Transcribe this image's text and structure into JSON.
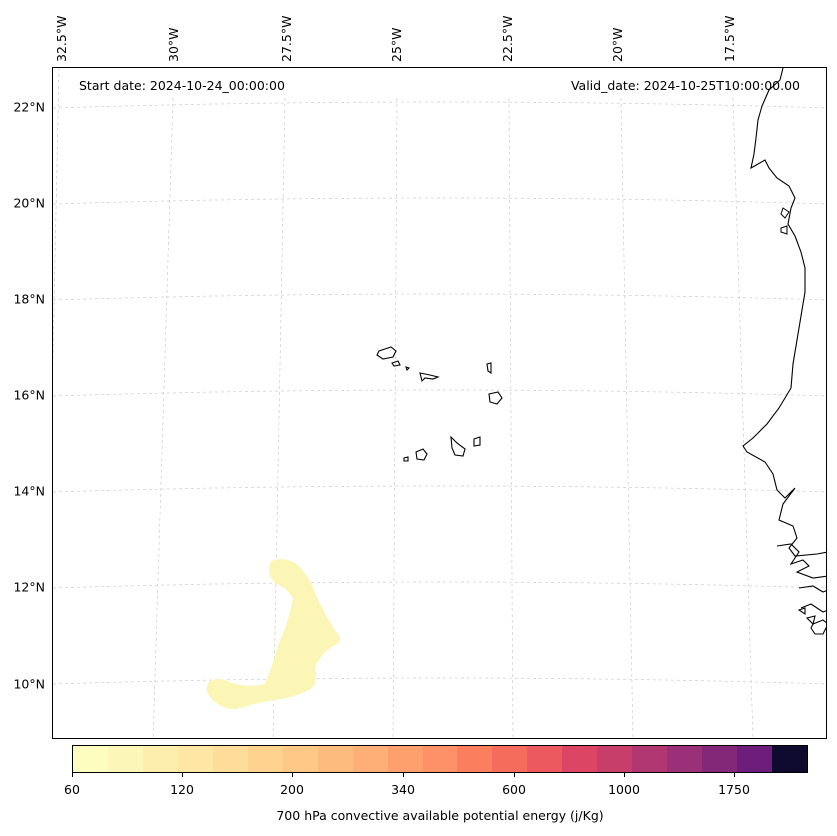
{
  "header": {
    "start_date": "Start date: 2024-10-24_00:00:00",
    "valid_date": "Valid_date: 2024-10-25T10:00:00.00"
  },
  "map": {
    "latitude_labels": [
      "22°N",
      "20°N",
      "18°N",
      "16°N",
      "14°N",
      "12°N",
      "10°N"
    ],
    "longitude_labels": [
      "32.5°W",
      "30°W",
      "27.5°W",
      "25°W",
      "22.5°W",
      "20°W",
      "17.5°W"
    ],
    "gridlines": true,
    "coastline_color": "#000000",
    "field_color": "#fcf6b6"
  },
  "colorbar": {
    "label": "700 hPa convective available potential energy (j/Kg)",
    "tick_labels": [
      "60",
      "120",
      "200",
      "340",
      "600",
      "1000",
      "1750"
    ],
    "colors": [
      "#fcfdbf",
      "#fcf6b8",
      "#fdeeae",
      "#fee6a4",
      "#fedd9a",
      "#fed38f",
      "#fec886",
      "#febb7e",
      "#feae77",
      "#fea06e",
      "#fd9167",
      "#fb7f5f",
      "#f66c5c",
      "#ec595f",
      "#dc4664",
      "#c73e6b",
      "#b03772",
      "#9a3077",
      "#832879",
      "#6c1e7a",
      "#0d0a2e"
    ]
  }
}
